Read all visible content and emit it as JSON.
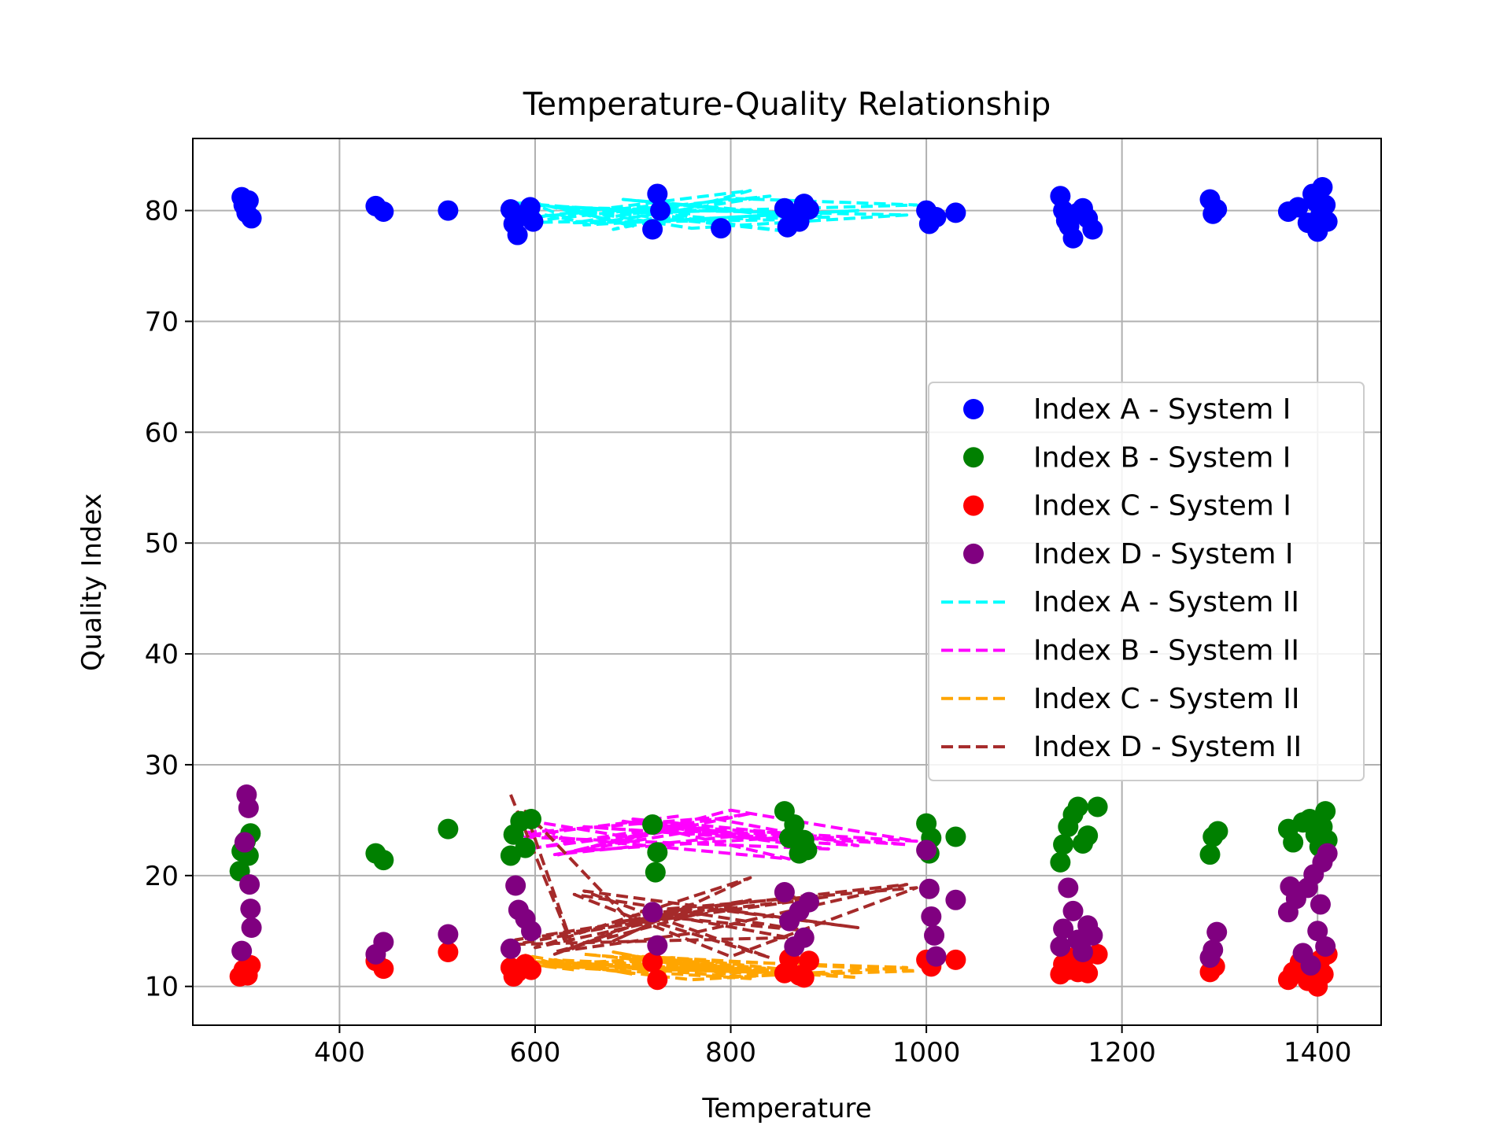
{
  "chart_data": {
    "type": "scatter",
    "title": "Temperature-Quality Relationship",
    "xlabel": "Temperature",
    "ylabel": "Quality Index",
    "xlim": [
      250,
      1465
    ],
    "ylim": [
      6.5,
      86.5
    ],
    "xticks": [
      400,
      600,
      800,
      1000,
      1200,
      1400
    ],
    "yticks": [
      10,
      20,
      30,
      40,
      50,
      60,
      70,
      80
    ],
    "grid": true,
    "legend_position": "center-right",
    "colors": {
      "index_a_sys1": "#0000ff",
      "index_b_sys1": "#008000",
      "index_c_sys1": "#ff0000",
      "index_d_sys1": "#800080",
      "index_a_sys2": "#00ffff",
      "index_b_sys2": "#ff00ff",
      "index_c_sys2": "#ffa500",
      "index_d_sys2": "#a52a2a"
    },
    "series": [
      {
        "name": "Index A - System I",
        "kind": "scatter",
        "color": "#0000ff",
        "points": [
          [
            300,
            81.2
          ],
          [
            302,
            80.5
          ],
          [
            305,
            79.8
          ],
          [
            307,
            80.9
          ],
          [
            310,
            79.3
          ],
          [
            437,
            80.4
          ],
          [
            445,
            79.9
          ],
          [
            511,
            80.0
          ],
          [
            575,
            80.1
          ],
          [
            578,
            78.8
          ],
          [
            582,
            77.8
          ],
          [
            590,
            79.5
          ],
          [
            595,
            80.3
          ],
          [
            598,
            79.0
          ],
          [
            720,
            78.3
          ],
          [
            725,
            81.5
          ],
          [
            728,
            80.0
          ],
          [
            790,
            78.4
          ],
          [
            855,
            80.2
          ],
          [
            858,
            78.5
          ],
          [
            862,
            79.6
          ],
          [
            870,
            79.0
          ],
          [
            875,
            80.6
          ],
          [
            880,
            80.1
          ],
          [
            1000,
            80.0
          ],
          [
            1003,
            78.8
          ],
          [
            1010,
            79.4
          ],
          [
            1030,
            79.8
          ],
          [
            1137,
            81.3
          ],
          [
            1140,
            80.0
          ],
          [
            1143,
            79.1
          ],
          [
            1146,
            78.6
          ],
          [
            1150,
            77.5
          ],
          [
            1155,
            79.8
          ],
          [
            1160,
            80.2
          ],
          [
            1165,
            79.3
          ],
          [
            1170,
            78.3
          ],
          [
            1290,
            81.0
          ],
          [
            1293,
            79.7
          ],
          [
            1297,
            80.1
          ],
          [
            1370,
            79.9
          ],
          [
            1380,
            80.3
          ],
          [
            1390,
            78.9
          ],
          [
            1395,
            81.5
          ],
          [
            1398,
            80.8
          ],
          [
            1400,
            78.1
          ],
          [
            1403,
            79.6
          ],
          [
            1405,
            82.1
          ],
          [
            1408,
            80.5
          ],
          [
            1410,
            79.0
          ]
        ]
      },
      {
        "name": "Index B - System I",
        "kind": "scatter",
        "color": "#008000",
        "points": [
          [
            298,
            20.4
          ],
          [
            300,
            22.2
          ],
          [
            304,
            23.1
          ],
          [
            307,
            21.8
          ],
          [
            309,
            23.8
          ],
          [
            437,
            22.0
          ],
          [
            445,
            21.4
          ],
          [
            511,
            24.2
          ],
          [
            575,
            21.8
          ],
          [
            578,
            23.7
          ],
          [
            585,
            24.9
          ],
          [
            590,
            22.5
          ],
          [
            596,
            25.1
          ],
          [
            720,
            24.6
          ],
          [
            723,
            20.3
          ],
          [
            725,
            22.1
          ],
          [
            855,
            25.8
          ],
          [
            860,
            23.4
          ],
          [
            865,
            24.6
          ],
          [
            870,
            22.0
          ],
          [
            875,
            23.2
          ],
          [
            878,
            22.3
          ],
          [
            1000,
            24.7
          ],
          [
            1003,
            22.0
          ],
          [
            1005,
            23.4
          ],
          [
            1030,
            23.5
          ],
          [
            1137,
            21.2
          ],
          [
            1140,
            22.8
          ],
          [
            1145,
            24.4
          ],
          [
            1150,
            25.5
          ],
          [
            1155,
            26.2
          ],
          [
            1160,
            22.9
          ],
          [
            1165,
            23.6
          ],
          [
            1175,
            26.2
          ],
          [
            1290,
            21.9
          ],
          [
            1293,
            23.5
          ],
          [
            1298,
            24.0
          ],
          [
            1370,
            24.2
          ],
          [
            1375,
            23.0
          ],
          [
            1385,
            24.8
          ],
          [
            1392,
            25.1
          ],
          [
            1398,
            23.7
          ],
          [
            1402,
            22.6
          ],
          [
            1405,
            24.4
          ],
          [
            1408,
            25.8
          ],
          [
            1410,
            23.2
          ]
        ]
      },
      {
        "name": "Index C - System I",
        "kind": "scatter",
        "color": "#ff0000",
        "points": [
          [
            298,
            10.9
          ],
          [
            302,
            11.5
          ],
          [
            306,
            11.0
          ],
          [
            309,
            11.9
          ],
          [
            437,
            12.3
          ],
          [
            445,
            11.6
          ],
          [
            511,
            13.1
          ],
          [
            575,
            11.7
          ],
          [
            578,
            10.9
          ],
          [
            582,
            11.3
          ],
          [
            590,
            12.0
          ],
          [
            596,
            11.5
          ],
          [
            720,
            12.2
          ],
          [
            725,
            10.6
          ],
          [
            855,
            11.2
          ],
          [
            860,
            12.5
          ],
          [
            870,
            11.0
          ],
          [
            875,
            10.8
          ],
          [
            880,
            12.3
          ],
          [
            1000,
            12.4
          ],
          [
            1005,
            11.8
          ],
          [
            1030,
            12.4
          ],
          [
            1137,
            11.1
          ],
          [
            1140,
            12.0
          ],
          [
            1145,
            11.5
          ],
          [
            1150,
            12.6
          ],
          [
            1155,
            11.3
          ],
          [
            1160,
            12.2
          ],
          [
            1165,
            11.2
          ],
          [
            1175,
            12.9
          ],
          [
            1290,
            11.3
          ],
          [
            1295,
            11.8
          ],
          [
            1370,
            10.6
          ],
          [
            1375,
            11.3
          ],
          [
            1382,
            12.2
          ],
          [
            1390,
            10.5
          ],
          [
            1395,
            11.8
          ],
          [
            1400,
            10.0
          ],
          [
            1403,
            12.4
          ],
          [
            1406,
            11.1
          ],
          [
            1410,
            12.9
          ]
        ]
      },
      {
        "name": "Index D - System I",
        "kind": "scatter",
        "color": "#800080",
        "points": [
          [
            300,
            13.2
          ],
          [
            303,
            23.0
          ],
          [
            305,
            27.3
          ],
          [
            307,
            26.1
          ],
          [
            308,
            19.2
          ],
          [
            309,
            17.0
          ],
          [
            310,
            15.3
          ],
          [
            437,
            12.9
          ],
          [
            445,
            14.0
          ],
          [
            511,
            14.7
          ],
          [
            575,
            13.4
          ],
          [
            580,
            19.1
          ],
          [
            583,
            16.9
          ],
          [
            590,
            16.1
          ],
          [
            596,
            15.0
          ],
          [
            720,
            16.7
          ],
          [
            725,
            13.7
          ],
          [
            855,
            18.5
          ],
          [
            860,
            15.9
          ],
          [
            865,
            13.6
          ],
          [
            870,
            16.8
          ],
          [
            875,
            14.4
          ],
          [
            880,
            17.6
          ],
          [
            1000,
            22.3
          ],
          [
            1003,
            18.8
          ],
          [
            1005,
            16.3
          ],
          [
            1008,
            14.6
          ],
          [
            1010,
            12.7
          ],
          [
            1030,
            17.8
          ],
          [
            1137,
            13.6
          ],
          [
            1140,
            15.2
          ],
          [
            1145,
            18.9
          ],
          [
            1150,
            16.8
          ],
          [
            1155,
            14.2
          ],
          [
            1160,
            13.1
          ],
          [
            1165,
            15.5
          ],
          [
            1170,
            14.6
          ],
          [
            1290,
            12.6
          ],
          [
            1293,
            13.3
          ],
          [
            1297,
            14.9
          ],
          [
            1370,
            16.7
          ],
          [
            1372,
            19.0
          ],
          [
            1378,
            17.9
          ],
          [
            1385,
            13.0
          ],
          [
            1390,
            18.9
          ],
          [
            1393,
            11.9
          ],
          [
            1396,
            20.1
          ],
          [
            1400,
            15.0
          ],
          [
            1403,
            17.4
          ],
          [
            1405,
            21.2
          ],
          [
            1408,
            13.6
          ],
          [
            1410,
            22.0
          ]
        ]
      },
      {
        "name": "Index A - System II",
        "kind": "line",
        "color": "#00ffff",
        "x": [
          575,
          640,
          590,
          700,
          620,
          760,
          680,
          820,
          600,
          740,
          880,
          640,
          800,
          990,
          710,
          860,
          580,
          780,
          930,
          650,
          840,
          700,
          980,
          760,
          620,
          820,
          690,
          900,
          580,
          750
        ],
        "y": [
          80.2,
          79.1,
          80.9,
          78.6,
          80.4,
          79.7,
          78.3,
          81.8,
          79.4,
          80.6,
          79.2,
          78.9,
          81.1,
          80.5,
          79.8,
          78.1,
          80.7,
          79.3,
          80.0,
          78.7,
          81.3,
          80.1,
          79.6,
          78.4,
          80.3,
          79.9,
          81.0,
          79.4,
          78.9,
          80.5
        ]
      },
      {
        "name": "Index B - System II",
        "kind": "line",
        "color": "#ff00ff",
        "x": [
          575,
          640,
          590,
          700,
          620,
          760,
          680,
          820,
          600,
          740,
          880,
          640,
          800,
          990,
          710,
          860,
          580,
          780,
          930,
          650,
          840,
          700,
          980,
          760,
          620,
          820,
          690,
          900,
          580,
          750
        ],
        "y": [
          24.3,
          22.9,
          25.0,
          23.4,
          21.8,
          24.8,
          23.0,
          25.6,
          22.5,
          24.1,
          23.6,
          22.2,
          25.9,
          23.1,
          24.6,
          21.5,
          23.8,
          25.2,
          22.7,
          24.4,
          23.3,
          25.1,
          22.8,
          24.0,
          21.9,
          23.7,
          24.9,
          22.4,
          23.5,
          25.4
        ]
      },
      {
        "name": "Index C - System II",
        "kind": "line",
        "color": "#ffa500",
        "x": [
          575,
          640,
          590,
          700,
          620,
          760,
          680,
          820,
          600,
          740,
          880,
          640,
          800,
          990,
          710,
          860,
          580,
          780,
          930,
          650,
          840,
          700,
          980,
          760,
          620,
          820,
          690,
          900,
          580,
          750
        ],
        "y": [
          12.2,
          11.5,
          12.8,
          11.1,
          12.4,
          11.8,
          13.1,
          10.7,
          11.9,
          12.6,
          11.3,
          12.1,
          10.9,
          11.4,
          12.7,
          11.0,
          12.3,
          11.6,
          10.8,
          12.9,
          11.2,
          12.5,
          11.7,
          10.6,
          12.0,
          11.4,
          12.8,
          11.1,
          11.9,
          12.4
        ]
      },
      {
        "name": "Index D - System II",
        "kind": "line",
        "color": "#a52a2a",
        "x": [
          575,
          640,
          590,
          700,
          620,
          760,
          680,
          820,
          600,
          740,
          880,
          640,
          800,
          990,
          710,
          860,
          580,
          780,
          930,
          650,
          840,
          700,
          980,
          760,
          620,
          820,
          690,
          900,
          580,
          750
        ],
        "y": [
          27.3,
          13.2,
          25.8,
          15.6,
          12.9,
          17.4,
          14.1,
          19.8,
          13.5,
          16.2,
          15.0,
          18.3,
          12.7,
          18.9,
          16.8,
          14.4,
          13.8,
          17.0,
          15.3,
          18.6,
          12.6,
          16.4,
          19.2,
          14.8,
          13.1,
          17.8,
          15.9,
          18.1,
          14.2,
          16.6
        ]
      }
    ]
  }
}
